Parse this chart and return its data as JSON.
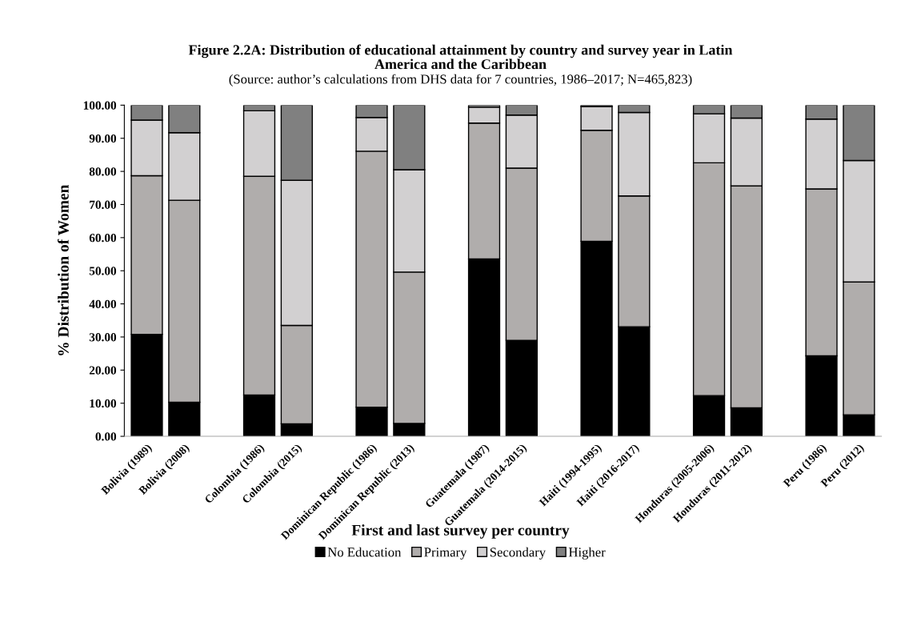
{
  "chart_data": {
    "type": "bar",
    "stacked": true,
    "title": "Figure 2.2A: Distribution of educational attainment by country and survey year in Latin\nAmerica and the Caribbean",
    "subtitle": "(Source: author’s calculations from DHS data for 7 countries, 1986–2017; N=465,823)",
    "xlabel": "First and last survey per country",
    "ylabel": "% Distribution of Women",
    "categories": [
      "Bolivia (1989)",
      "Bolivia (2008)",
      null,
      "Colombia (1986)",
      "Colombia (2015)",
      null,
      "Dominican Republic (1986)",
      "Dominican Republic (2013)",
      null,
      "Guatemala (1987)",
      "Guatemala (2014-2015)",
      null,
      "Haiti (1994-1995)",
      "Haiti (2016-2017)",
      null,
      "Honduras (2005-2006)",
      "Honduras (2011-2012)",
      null,
      "Peru (1986)",
      "Peru (2012)"
    ],
    "series": [
      {
        "name": "No Education",
        "color": "#000000",
        "values": [
          30.8,
          10.3,
          null,
          12.5,
          3.8,
          null,
          8.8,
          3.9,
          null,
          53.6,
          29.0,
          null,
          58.9,
          33.1,
          null,
          12.3,
          8.6,
          null,
          24.3,
          6.5
        ]
      },
      {
        "name": "Primary",
        "color": "#b0adac",
        "values": [
          47.9,
          61.0,
          null,
          66.0,
          29.7,
          null,
          77.3,
          45.7,
          null,
          41.0,
          52.0,
          null,
          33.5,
          39.5,
          null,
          70.3,
          67.0,
          null,
          50.4,
          40.1
        ]
      },
      {
        "name": "Secondary",
        "color": "#d2d0d1",
        "values": [
          16.8,
          20.4,
          null,
          19.8,
          43.8,
          null,
          10.2,
          30.9,
          null,
          4.8,
          16.0,
          null,
          7.2,
          25.2,
          null,
          14.8,
          20.5,
          null,
          21.1,
          36.7
        ]
      },
      {
        "name": "Higher",
        "color": "#808080",
        "values": [
          4.5,
          8.3,
          null,
          1.7,
          22.7,
          null,
          3.7,
          19.5,
          null,
          0.6,
          3.0,
          null,
          0.4,
          2.2,
          null,
          2.6,
          3.9,
          null,
          4.2,
          16.7
        ]
      }
    ],
    "ylim": [
      0,
      100
    ],
    "yticks": [
      {
        "value": 0,
        "label": "0.00"
      },
      {
        "value": 10,
        "label": "10.00"
      },
      {
        "value": 20,
        "label": "20.00"
      },
      {
        "value": 30,
        "label": "30.00"
      },
      {
        "value": 40,
        "label": "40.00"
      },
      {
        "value": 50,
        "label": "50.00"
      },
      {
        "value": 60,
        "label": "60.00"
      },
      {
        "value": 70,
        "label": "70.00"
      },
      {
        "value": 80,
        "label": "80.00"
      },
      {
        "value": 90,
        "label": "90.00"
      },
      {
        "value": 100,
        "label": "100.00"
      }
    ],
    "grid": false,
    "legend": "bottom"
  }
}
